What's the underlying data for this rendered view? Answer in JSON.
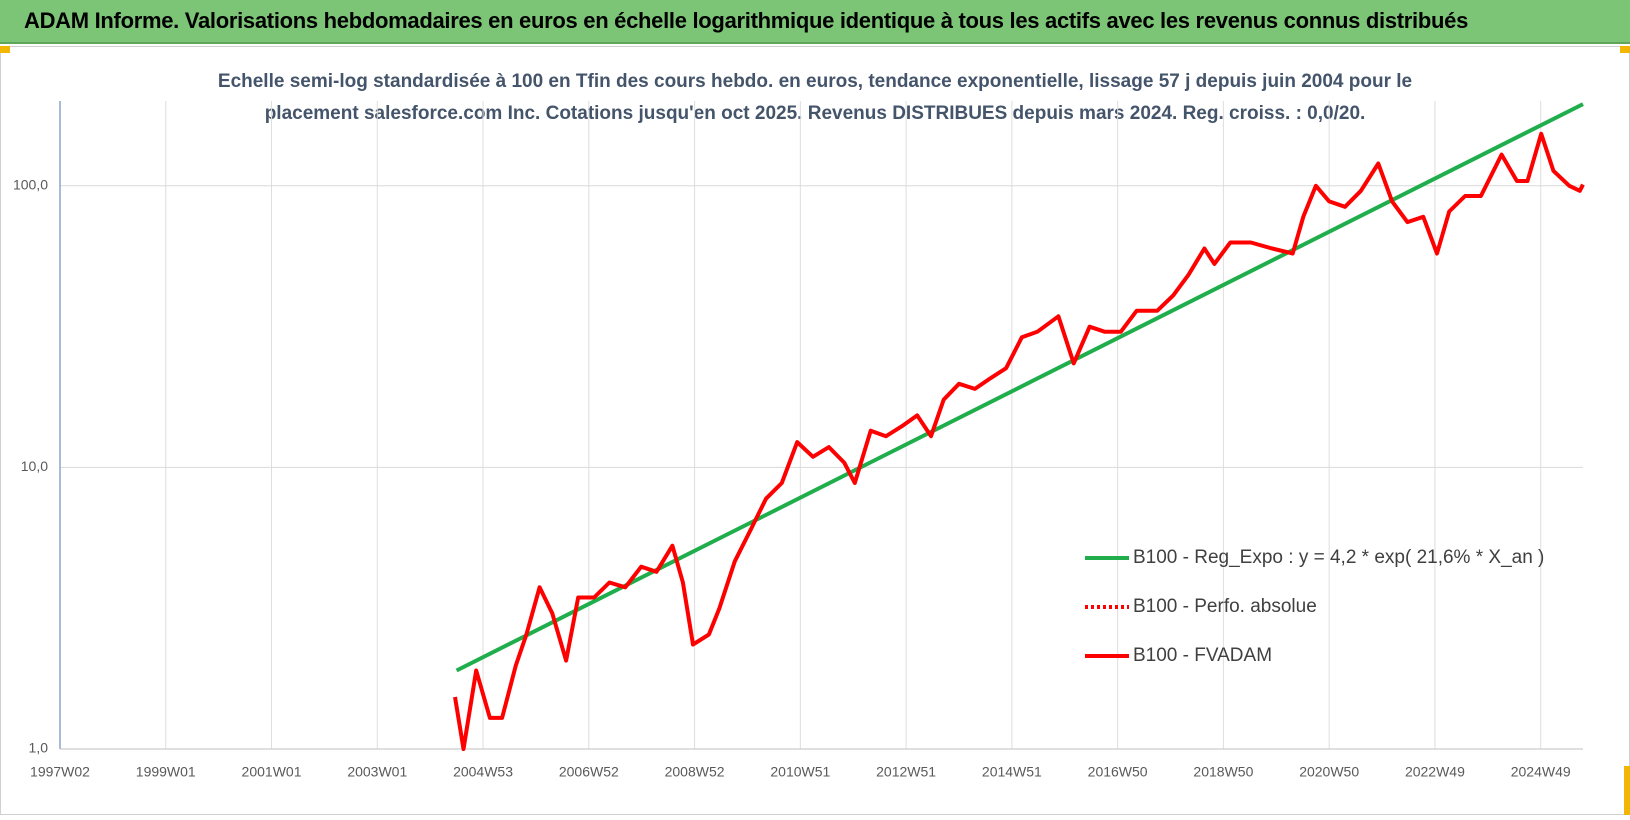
{
  "header": {
    "title": "ADAM Informe. Valorisations hebdomadaires en euros en échelle logarithmique identique à tous les actifs avec les revenus connus distribués"
  },
  "chart_data": {
    "type": "line",
    "title": [
      "Echelle semi-log standardisée à 100 en Tfin des cours hebdo. en euros, tendance exponentielle, lissage 57 j depuis juin 2004 pour le",
      "placement salesforce.com Inc. Cotations jusqu'en oct 2025. Revenus DISTRIBUES depuis mars 2024. Reg. croiss. : 0,0/20."
    ],
    "log_y": true,
    "grid": true,
    "legend": "lower right",
    "xlim": [
      1997.0,
      2025.8
    ],
    "xticks": [
      {
        "value": 1997.0,
        "label": "1997W02"
      },
      {
        "value": 1999.0,
        "label": "1999W01"
      },
      {
        "value": 2001.0,
        "label": "2001W01"
      },
      {
        "value": 2003.0,
        "label": "2003W01"
      },
      {
        "value": 2005.0,
        "label": "2004W53"
      },
      {
        "value": 2007.0,
        "label": "2006W52"
      },
      {
        "value": 2009.0,
        "label": "2008W52"
      },
      {
        "value": 2011.0,
        "label": "2010W51"
      },
      {
        "value": 2013.0,
        "label": "2012W51"
      },
      {
        "value": 2015.0,
        "label": "2014W51"
      },
      {
        "value": 2017.0,
        "label": "2016W50"
      },
      {
        "value": 2019.0,
        "label": "2018W50"
      },
      {
        "value": 2021.0,
        "label": "2020W50"
      },
      {
        "value": 2023.0,
        "label": "2022W49"
      },
      {
        "value": 2025.0,
        "label": "2024W49"
      }
    ],
    "ylim": [
      1,
      200
    ],
    "yticks": [
      {
        "value": 1,
        "label": "1,0"
      },
      {
        "value": 10,
        "label": "10,0"
      },
      {
        "value": 100,
        "label": "100,0"
      }
    ],
    "series": [
      {
        "name": "B100 - Reg_Expo : y = 4,2 * exp( 21,6% *  X_an )",
        "color": "#1fae4b",
        "style": "solid",
        "x": [
          2004.5,
          2025.8
        ],
        "values": [
          1.9,
          195
        ]
      },
      {
        "name": "B100 - Perfo. absolue",
        "color": "#ff0000",
        "style": "dotted"
      },
      {
        "name": "B100 - FVADAM",
        "color": "#ff0000",
        "style": "solid",
        "x": [
          2004.47,
          2004.63,
          2004.87,
          2005.13,
          2005.36,
          2005.62,
          2005.82,
          2006.07,
          2006.31,
          2006.57,
          2006.8,
          2007.1,
          2007.39,
          2007.69,
          2007.99,
          2008.28,
          2008.58,
          2008.78,
          2008.97,
          2009.27,
          2009.47,
          2009.76,
          2010.06,
          2010.35,
          2010.65,
          2010.94,
          2011.24,
          2011.54,
          2011.83,
          2012.03,
          2012.33,
          2012.62,
          2012.92,
          2013.21,
          2013.47,
          2013.71,
          2014.0,
          2014.3,
          2014.59,
          2014.89,
          2015.19,
          2015.48,
          2015.88,
          2016.17,
          2016.47,
          2016.76,
          2017.06,
          2017.36,
          2017.75,
          2018.05,
          2018.34,
          2018.64,
          2018.83,
          2019.13,
          2019.52,
          2019.92,
          2020.31,
          2020.51,
          2020.75,
          2021.0,
          2021.3,
          2021.6,
          2021.93,
          2022.19,
          2022.48,
          2022.78,
          2023.04,
          2023.27,
          2023.57,
          2023.87,
          2024.26,
          2024.55,
          2024.75,
          2025.01,
          2025.24,
          2025.54,
          2025.74,
          2025.8
        ],
        "values": [
          1.53,
          1.0,
          1.9,
          1.29,
          1.29,
          1.98,
          2.55,
          3.75,
          3.03,
          2.06,
          3.45,
          3.45,
          3.9,
          3.75,
          4.44,
          4.26,
          5.27,
          3.9,
          2.35,
          2.55,
          3.16,
          4.64,
          6.0,
          7.74,
          8.8,
          12.3,
          10.9,
          11.8,
          10.4,
          8.8,
          13.5,
          12.9,
          14.0,
          15.3,
          12.9,
          17.4,
          19.8,
          19.0,
          20.7,
          22.5,
          29.0,
          30.3,
          34.4,
          23.4,
          31.6,
          30.3,
          30.3,
          36,
          36,
          40.8,
          48.3,
          59.9,
          52.8,
          62.9,
          62.9,
          59.9,
          57.5,
          77.6,
          100,
          88,
          84.2,
          96,
          120,
          88,
          74.3,
          77.6,
          57.5,
          81,
          92,
          92,
          129,
          104,
          104,
          153,
          113,
          100,
          96,
          101
        ]
      }
    ]
  }
}
